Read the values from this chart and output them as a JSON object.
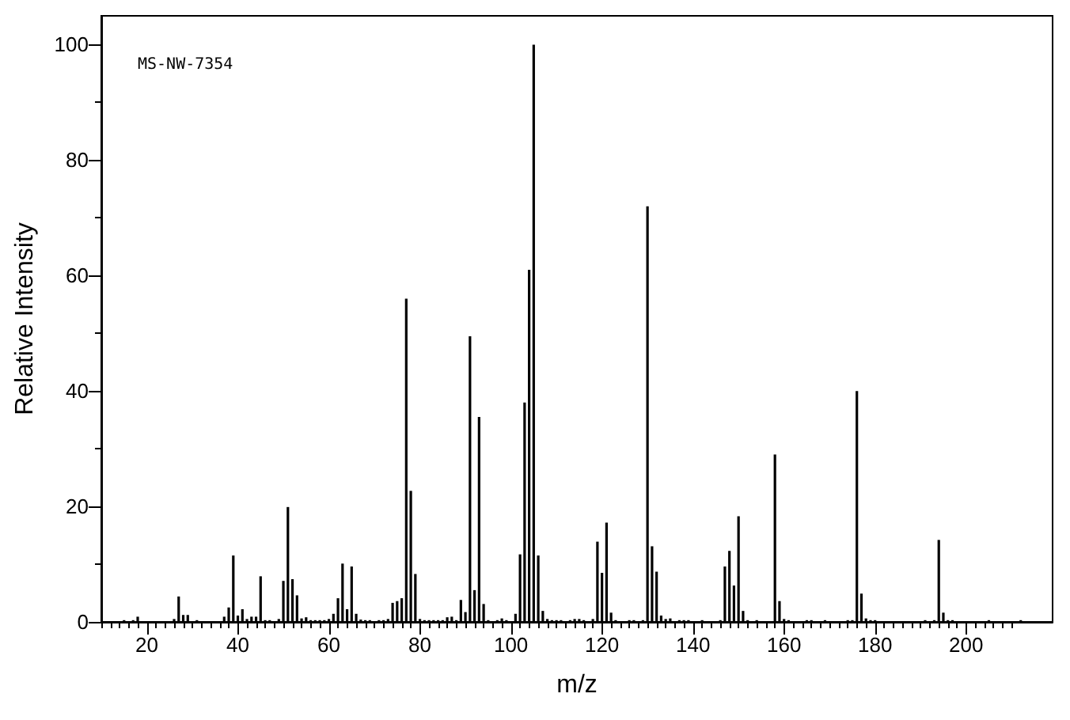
{
  "chart_data": {
    "type": "bar",
    "xlabel": "m/z",
    "ylabel": "Relative Intensity",
    "annotations": [
      "MS-NW-7354"
    ],
    "xlim": [
      10,
      219
    ],
    "ylim": [
      0,
      105
    ],
    "xticks": [
      {
        "value": 10,
        "label": null
      },
      {
        "value": 12,
        "label": null
      },
      {
        "value": 14,
        "label": null
      },
      {
        "value": 16,
        "label": null
      },
      {
        "value": 18,
        "label": null
      },
      20,
      {
        "value": 22,
        "label": null
      },
      {
        "value": 24,
        "label": null
      },
      {
        "value": 26,
        "label": null
      },
      {
        "value": 28,
        "label": null
      },
      {
        "value": 30,
        "label": null
      },
      {
        "value": 32,
        "label": null
      },
      {
        "value": 34,
        "label": null
      },
      {
        "value": 36,
        "label": null
      },
      {
        "value": 38,
        "label": null
      },
      40,
      {
        "value": 42,
        "label": null
      },
      {
        "value": 44,
        "label": null
      },
      {
        "value": 46,
        "label": null
      },
      {
        "value": 48,
        "label": null
      },
      {
        "value": 50,
        "label": null
      },
      {
        "value": 52,
        "label": null
      },
      {
        "value": 54,
        "label": null
      },
      {
        "value": 56,
        "label": null
      },
      {
        "value": 58,
        "label": null
      },
      60,
      {
        "value": 62,
        "label": null
      },
      {
        "value": 64,
        "label": null
      },
      {
        "value": 66,
        "label": null
      },
      {
        "value": 68,
        "label": null
      },
      {
        "value": 70,
        "label": null
      },
      {
        "value": 72,
        "label": null
      },
      {
        "value": 74,
        "label": null
      },
      {
        "value": 76,
        "label": null
      },
      {
        "value": 78,
        "label": null
      },
      80,
      {
        "value": 82,
        "label": null
      },
      {
        "value": 84,
        "label": null
      },
      {
        "value": 86,
        "label": null
      },
      {
        "value": 88,
        "label": null
      },
      {
        "value": 90,
        "label": null
      },
      {
        "value": 92,
        "label": null
      },
      {
        "value": 94,
        "label": null
      },
      {
        "value": 96,
        "label": null
      },
      {
        "value": 98,
        "label": null
      },
      100,
      {
        "value": 102,
        "label": null
      },
      {
        "value": 104,
        "label": null
      },
      {
        "value": 106,
        "label": null
      },
      {
        "value": 108,
        "label": null
      },
      {
        "value": 110,
        "label": null
      },
      {
        "value": 112,
        "label": null
      },
      {
        "value": 114,
        "label": null
      },
      {
        "value": 116,
        "label": null
      },
      {
        "value": 118,
        "label": null
      },
      120,
      {
        "value": 122,
        "label": null
      },
      {
        "value": 124,
        "label": null
      },
      {
        "value": 126,
        "label": null
      },
      {
        "value": 128,
        "label": null
      },
      {
        "value": 130,
        "label": null
      },
      {
        "value": 132,
        "label": null
      },
      {
        "value": 134,
        "label": null
      },
      {
        "value": 136,
        "label": null
      },
      {
        "value": 138,
        "label": null
      },
      140,
      {
        "value": 142,
        "label": null
      },
      {
        "value": 144,
        "label": null
      },
      {
        "value": 146,
        "label": null
      },
      {
        "value": 148,
        "label": null
      },
      {
        "value": 150,
        "label": null
      },
      {
        "value": 152,
        "label": null
      },
      {
        "value": 154,
        "label": null
      },
      {
        "value": 156,
        "label": null
      },
      {
        "value": 158,
        "label": null
      },
      160,
      {
        "value": 162,
        "label": null
      },
      {
        "value": 164,
        "label": null
      },
      {
        "value": 166,
        "label": null
      },
      {
        "value": 168,
        "label": null
      },
      {
        "value": 170,
        "label": null
      },
      {
        "value": 172,
        "label": null
      },
      {
        "value": 174,
        "label": null
      },
      {
        "value": 176,
        "label": null
      },
      {
        "value": 178,
        "label": null
      },
      180,
      {
        "value": 182,
        "label": null
      },
      {
        "value": 184,
        "label": null
      },
      {
        "value": 186,
        "label": null
      },
      {
        "value": 188,
        "label": null
      },
      {
        "value": 190,
        "label": null
      },
      {
        "value": 192,
        "label": null
      },
      {
        "value": 194,
        "label": null
      },
      {
        "value": 196,
        "label": null
      },
      {
        "value": 198,
        "label": null
      },
      200,
      {
        "value": 202,
        "label": null
      },
      {
        "value": 204,
        "label": null
      },
      {
        "value": 206,
        "label": null
      },
      {
        "value": 208,
        "label": null
      },
      {
        "value": 210,
        "label": null
      }
    ],
    "yticks": [
      0,
      {
        "value": 10,
        "label": null
      },
      20,
      {
        "value": 30,
        "label": null
      },
      40,
      {
        "value": 50,
        "label": null
      },
      60,
      {
        "value": 70,
        "label": null
      },
      80,
      {
        "value": 90,
        "label": null
      },
      100
    ],
    "grid": false,
    "series": [
      {
        "color": "#000000",
        "x": [
          15,
          17,
          18,
          26,
          27,
          28,
          29,
          31,
          37,
          38,
          39,
          40,
          41,
          42,
          43,
          44,
          45,
          46,
          47,
          49,
          50,
          51,
          52,
          53,
          54,
          55,
          56,
          57,
          58,
          59,
          60,
          61,
          62,
          63,
          64,
          65,
          66,
          67,
          68,
          69,
          71,
          72,
          73,
          74,
          75,
          76,
          77,
          78,
          79,
          80,
          81,
          82,
          83,
          84,
          85,
          86,
          87,
          88,
          89,
          90,
          91,
          92,
          93,
          94,
          95,
          97,
          98,
          99,
          101,
          102,
          103,
          104,
          105,
          106,
          107,
          108,
          109,
          110,
          111,
          113,
          114,
          115,
          116,
          118,
          119,
          120,
          121,
          122,
          123,
          126,
          127,
          129,
          130,
          131,
          132,
          133,
          134,
          135,
          137,
          138,
          139,
          142,
          146,
          147,
          148,
          149,
          150,
          151,
          152,
          154,
          158,
          159,
          160,
          161,
          165,
          166,
          169,
          174,
          175,
          176,
          177,
          178,
          179,
          180,
          191,
          193,
          194,
          195,
          196,
          197,
          205,
          212
        ],
        "values": [
          0.3,
          0.3,
          0.9,
          0.5,
          4.4,
          1.2,
          1.2,
          0.3,
          0.9,
          2.5,
          11.5,
          1.1,
          2.2,
          0.5,
          0.9,
          0.9,
          7.9,
          0.3,
          0.3,
          0.5,
          7.1,
          19.9,
          7.4,
          4.6,
          0.6,
          0.8,
          0.3,
          0.3,
          0.3,
          0.3,
          0.5,
          1.4,
          4.1,
          10.1,
          2.2,
          9.6,
          1.4,
          0.4,
          0.3,
          0.3,
          0.3,
          0.3,
          0.5,
          3.3,
          3.6,
          4.1,
          56,
          22.7,
          8.3,
          0.5,
          0.3,
          0.3,
          0.3,
          0.3,
          0.3,
          0.8,
          0.9,
          0.3,
          3.8,
          1.7,
          49.5,
          5.5,
          35.5,
          3.1,
          0.3,
          0.3,
          0.6,
          0.3,
          1.4,
          11.7,
          38,
          61,
          100,
          11.5,
          1.9,
          0.5,
          0.3,
          0.3,
          0.3,
          0.3,
          0.5,
          0.5,
          0.3,
          0.5,
          13.9,
          8.5,
          17.2,
          1.6,
          0.3,
          0.3,
          0.3,
          0.3,
          72,
          13.1,
          8.7,
          1.1,
          0.5,
          0.6,
          0.3,
          0.3,
          0.3,
          0.3,
          0.3,
          9.6,
          12.3,
          6.3,
          18.3,
          1.9,
          0.3,
          0.3,
          29,
          3.6,
          0.5,
          0.3,
          0.3,
          0.3,
          0.3,
          0.3,
          0.3,
          40,
          4.9,
          0.6,
          0.3,
          0.3,
          0.3,
          0.3,
          14.2,
          1.6,
          0.3,
          0.3,
          0.3,
          0.3
        ]
      }
    ]
  }
}
